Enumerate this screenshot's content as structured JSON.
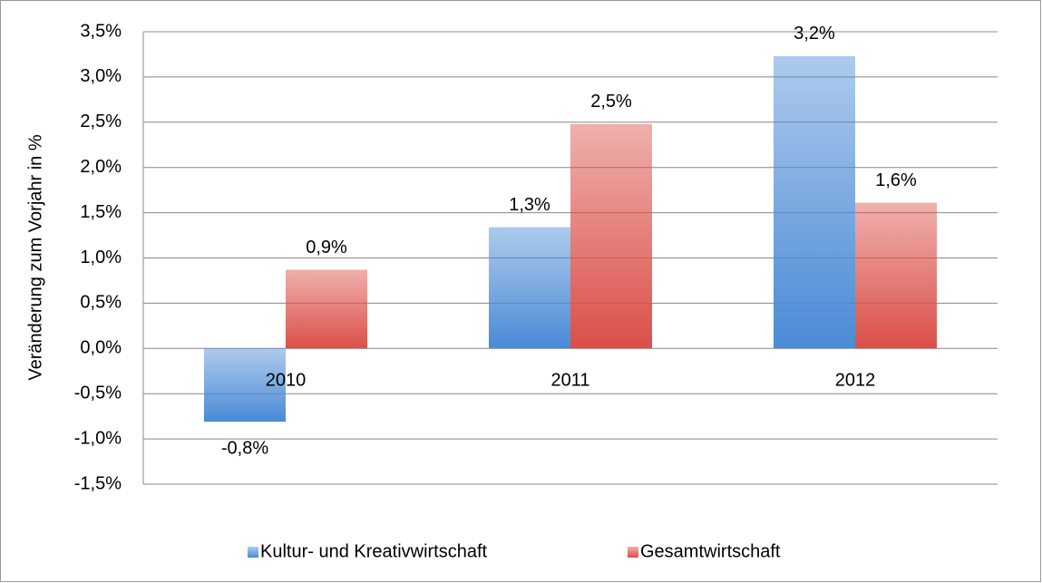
{
  "chart_data": {
    "type": "bar",
    "y_axis_label": "Veränderung zum Vorjahr in %",
    "categories": [
      "2010",
      "2011",
      "2012"
    ],
    "series": [
      {
        "name": "Kultur- und Kreativwirtschaft",
        "color": "#4a8ad6",
        "values": [
          -0.81,
          1.34,
          3.23
        ],
        "value_labels": [
          "-0,8%",
          "1,3%",
          "3,2%"
        ]
      },
      {
        "name": "Gesamtwirtschaft",
        "color": "#db4f48",
        "values": [
          0.87,
          2.48,
          1.61
        ],
        "value_labels": [
          "0,9%",
          "2,5%",
          "1,6%"
        ]
      }
    ],
    "ylim": [
      -1.5,
      3.5
    ],
    "yticks": [
      {
        "value": -1.5,
        "label": "-1,5%"
      },
      {
        "value": -1.0,
        "label": "-1,0%"
      },
      {
        "value": -0.5,
        "label": "-0,5%"
      },
      {
        "value": 0.0,
        "label": "0,0%"
      },
      {
        "value": 0.5,
        "label": "0,5%"
      },
      {
        "value": 1.0,
        "label": "1,0%"
      },
      {
        "value": 1.5,
        "label": "1,5%"
      },
      {
        "value": 2.0,
        "label": "2,0%"
      },
      {
        "value": 2.5,
        "label": "2,5%"
      },
      {
        "value": 3.0,
        "label": "3,0%"
      },
      {
        "value": 3.5,
        "label": "3,5%"
      }
    ],
    "grid": true,
    "legend": "bottom"
  }
}
